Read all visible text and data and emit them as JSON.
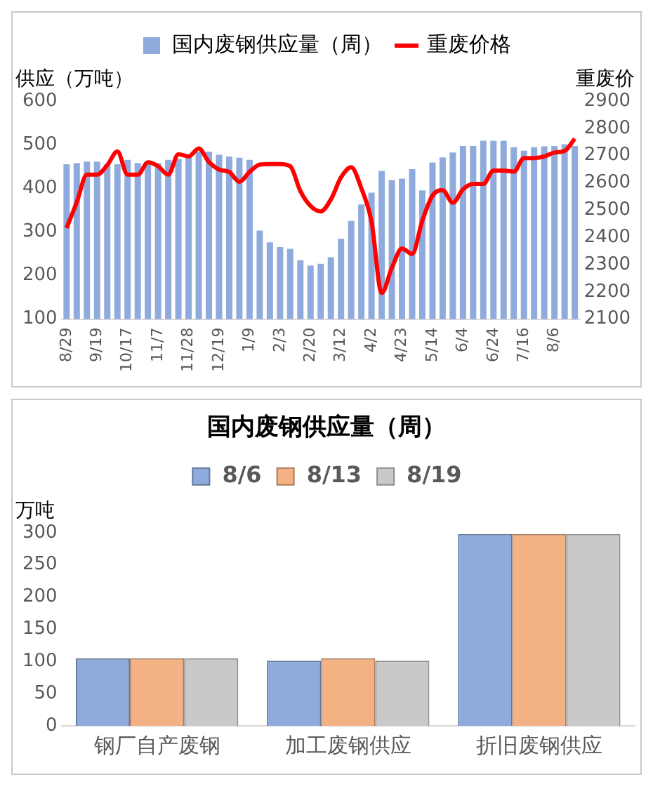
{
  "chart_data": [
    {
      "type": "bar",
      "ylabel": "供应（万吨）",
      "y2label": "重废价",
      "legend": "top",
      "categories": [
        "8/29",
        null,
        null,
        "9/19",
        null,
        null,
        "10/17",
        null,
        null,
        "11/7",
        null,
        null,
        "11/28",
        null,
        null,
        "12/19",
        null,
        null,
        "1/9",
        null,
        null,
        "2/3",
        null,
        null,
        "2/20",
        null,
        null,
        "3/12",
        null,
        null,
        "4/2",
        null,
        null,
        "4/23",
        null,
        null,
        "5/14",
        null,
        null,
        "6/4",
        null,
        null,
        "6/24",
        null,
        null,
        "7/16",
        null,
        null,
        "8/6",
        null,
        null
      ],
      "series": [
        {
          "name": "国内废钢供应量（周）",
          "type": "bar",
          "color": "#8faadc",
          "values": [
            455,
            458,
            461,
            461,
            455,
            455,
            465,
            458,
            458,
            458,
            465,
            467,
            474,
            484,
            484,
            477,
            473,
            470,
            465,
            303,
            276,
            265,
            261,
            235,
            223,
            227,
            242,
            284,
            325,
            363,
            390,
            440,
            419,
            422,
            444,
            395,
            459,
            471,
            482,
            497,
            497,
            509,
            509,
            509,
            494,
            486,
            494,
            496,
            497,
            501,
            497
          ]
        },
        {
          "name": "重废价格",
          "type": "line",
          "axis": "y2",
          "color": "#ff0000",
          "values": [
            2434,
            2529,
            2630,
            2630,
            2665,
            2715,
            2630,
            2630,
            2675,
            2661,
            2630,
            2705,
            2697,
            2726,
            2677,
            2649,
            2640,
            2604,
            2640,
            2667,
            2669,
            2669,
            2661,
            2570,
            2515,
            2495,
            2539,
            2620,
            2657,
            2580,
            2458,
            2196,
            2288,
            2359,
            2339,
            2461,
            2553,
            2573,
            2527,
            2576,
            2596,
            2596,
            2645,
            2645,
            2641,
            2691,
            2691,
            2697,
            2711,
            2717,
            2762
          ]
        }
      ],
      "ylim": [
        100,
        600
      ],
      "yticks": [
        100,
        200,
        300,
        400,
        500,
        600
      ],
      "y2lim": [
        2100,
        2900
      ],
      "y2ticks": [
        2100,
        2200,
        2300,
        2400,
        2500,
        2600,
        2700,
        2800,
        2900
      ]
    },
    {
      "type": "bar",
      "title": "国内废钢供应量（周）",
      "ylabel": "万吨",
      "legend": "top",
      "categories": [
        "钢厂自产废钢",
        "加工废钢供应",
        "折旧废钢供应"
      ],
      "series": [
        {
          "name": "8/6",
          "color": "#8faadc",
          "values": [
            105,
            101,
            298
          ]
        },
        {
          "name": "8/13",
          "color": "#f4b183",
          "values": [
            105,
            105,
            298
          ]
        },
        {
          "name": "8/19",
          "color": "#c9c9c9",
          "values": [
            105,
            101,
            298
          ]
        }
      ],
      "ylim": [
        0,
        300
      ],
      "yticks": [
        0,
        50,
        100,
        150,
        200,
        250,
        300
      ]
    }
  ]
}
